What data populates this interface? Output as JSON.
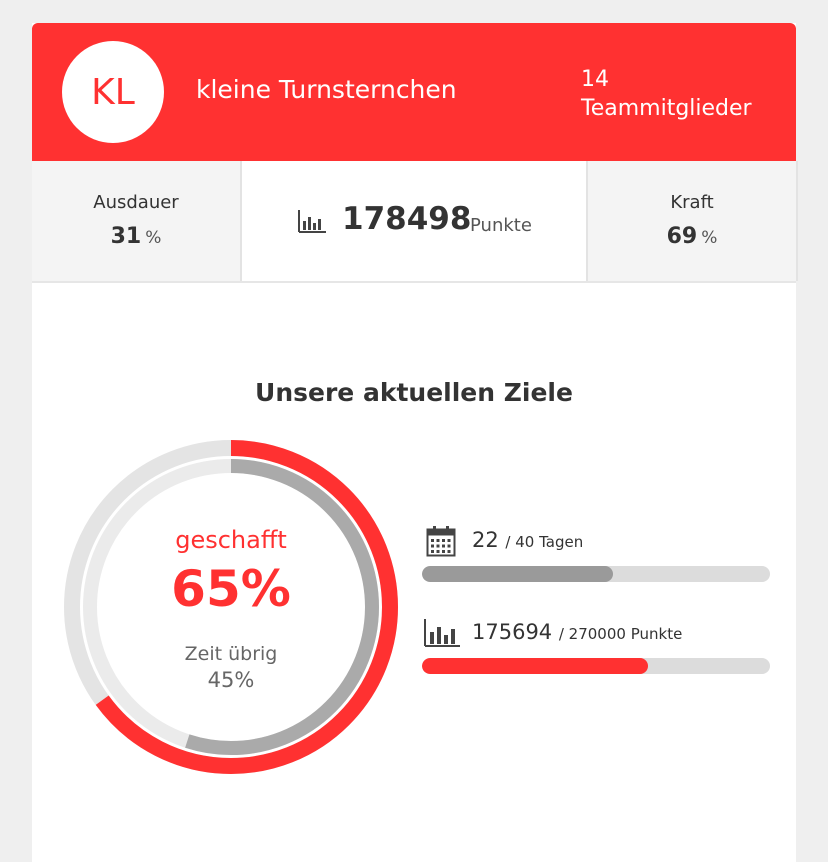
{
  "team": {
    "initials": "KL",
    "name": "kleine Turnsternchen",
    "members_count": "14",
    "members_label": "Teammitglieder"
  },
  "stats": {
    "endurance": {
      "label": "Ausdauer",
      "value": "31",
      "unit": "%"
    },
    "points": {
      "value": "178498",
      "unit": "Punkte",
      "icon": "bar-chart-icon"
    },
    "strength": {
      "label": "Kraft",
      "value": "69",
      "unit": "%"
    }
  },
  "goals": {
    "title": "Unsere aktuellen Ziele",
    "ring": {
      "done_label": "geschafft",
      "done_percent": "65%",
      "done_fraction": 0.65,
      "time_label": "Zeit übrig",
      "time_percent": "45%",
      "time_fraction": 0.55
    },
    "days": {
      "icon": "calendar-icon",
      "current": "22",
      "target": "/ 40 Tagen",
      "fraction": 0.55
    },
    "points": {
      "icon": "bar-chart-icon",
      "current": "175694",
      "target": "/ 270000 Punkte",
      "fraction": 0.65
    }
  },
  "colors": {
    "brand_red": "#ff3131",
    "progress_gray": "#9a9a9a",
    "track_gray": "#dcdcdc",
    "ring_light": "#e4e4e4",
    "ring_mid": "#aaaaaa"
  }
}
